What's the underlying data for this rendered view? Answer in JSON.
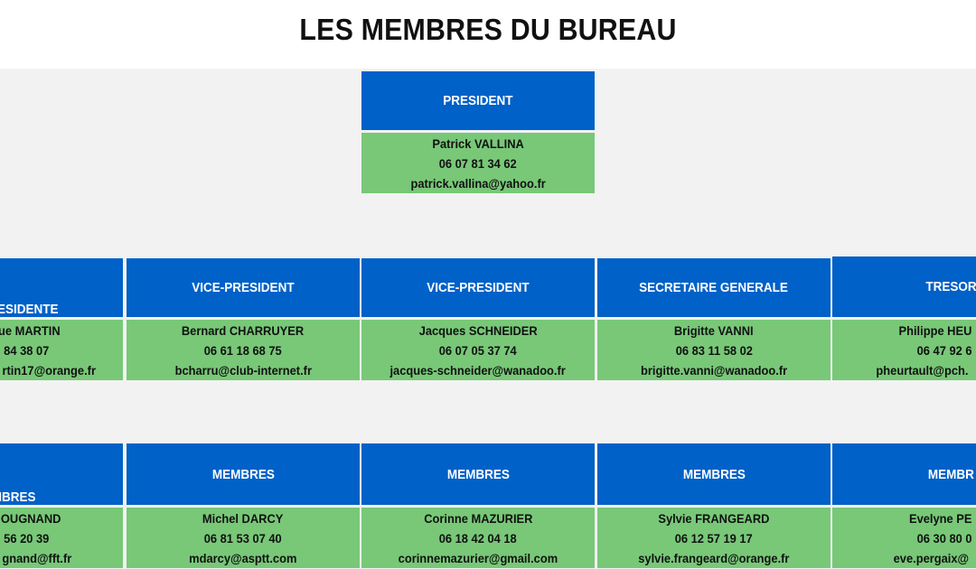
{
  "title": "LES MEMBRES DU BUREAU",
  "colors": {
    "header_blue": "#0061c8",
    "body_green": "#78c878",
    "background": "#f2f2f2"
  },
  "president": {
    "role": "PRESIDENT",
    "name": "Patrick VALLINA",
    "phone": "06 07 81 34 62",
    "email": "patrick.vallina@yahoo.fr"
  },
  "row1": [
    {
      "role": "RESIDENTE",
      "name": "ue MARTIN",
      "phone": "84 38 07",
      "email": "rtin17@orange.fr"
    },
    {
      "role": "VICE-PRESIDENT",
      "name": "Bernard CHARRUYER",
      "phone": "06 61 18 68 75",
      "email": "bcharru@club-internet.fr"
    },
    {
      "role": "VICE-PRESIDENT",
      "name": "Jacques SCHNEIDER",
      "phone": "06 07 05 37 74",
      "email": "jacques-schneider@wanadoo.fr"
    },
    {
      "role": "SECRETAIRE GENERALE",
      "name": "Brigitte VANNI",
      "phone": "06 83 11 58 02",
      "email": "brigitte.vanni@wanadoo.fr"
    },
    {
      "role": "TRESORI",
      "name": "Philippe HEU",
      "phone": "06 47 92 6",
      "email": "pheurtault@pch."
    }
  ],
  "row2": [
    {
      "role": "MBRES",
      "name": "OUGNAND",
      "phone": "56 20 39",
      "email": "gnand@fft.fr"
    },
    {
      "role": "MEMBRES",
      "name": "Michel DARCY",
      "phone": "06 81 53 07 40",
      "email": "mdarcy@asptt.com"
    },
    {
      "role": "MEMBRES",
      "name": "Corinne MAZURIER",
      "phone": "06 18 42 04 18",
      "email": "corinnemazurier@gmail.com"
    },
    {
      "role": "MEMBRES",
      "name": "Sylvie FRANGEARD",
      "phone": "06 12 57 19 17",
      "email": "sylvie.frangeard@orange.fr"
    },
    {
      "role": "MEMBR",
      "name": "Evelyne PE",
      "phone": "06 30 80 0",
      "email": "eve.pergaix@"
    }
  ]
}
